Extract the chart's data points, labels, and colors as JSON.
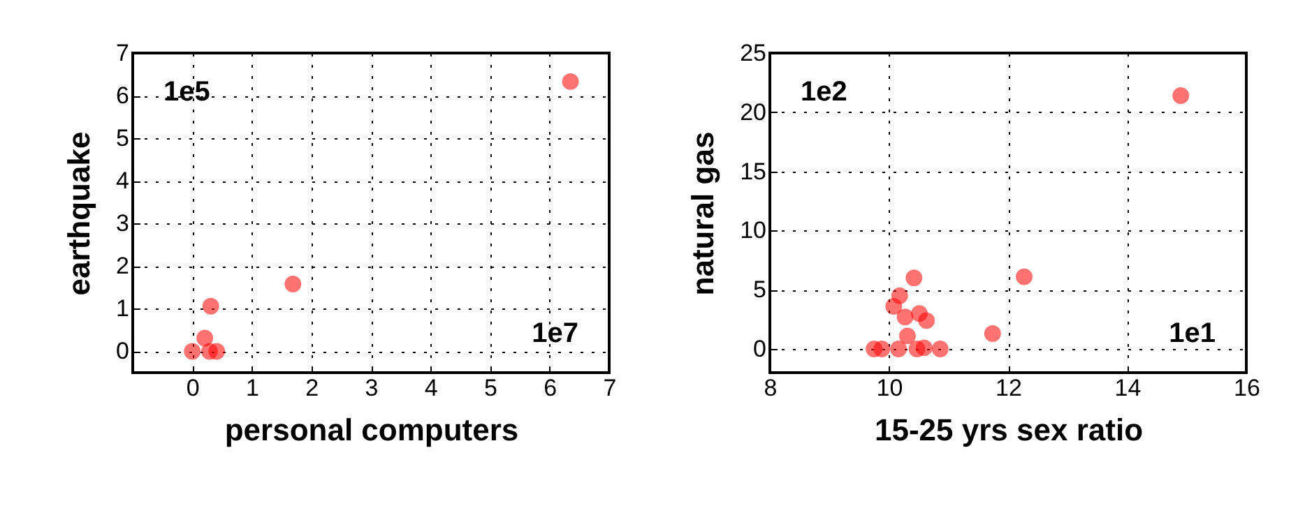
{
  "chart_data": [
    {
      "type": "scatter",
      "xlabel": "personal computers",
      "ylabel": "earthquake",
      "xlim": [
        -1,
        7
      ],
      "ylim": [
        -0.5,
        7
      ],
      "xticks": [
        0,
        1,
        2,
        3,
        4,
        5,
        6,
        7
      ],
      "yticks": [
        0,
        1,
        2,
        3,
        4,
        5,
        6,
        7
      ],
      "grid": true,
      "marker": "circle",
      "annotations": [
        "1e5",
        "1e7"
      ],
      "x": [
        6.35,
        1.69,
        0.31,
        0.21,
        0.41,
        0,
        0.29
      ],
      "series": [
        {
          "color": "#ff0000",
          "values": [
            6.33,
            1.58,
            1.06,
            0.31,
            0,
            0,
            0
          ]
        }
      ]
    },
    {
      "type": "scatter",
      "xlabel": "15-25 yrs sex ratio",
      "ylabel": "natural gas",
      "xlim": [
        8,
        16
      ],
      "ylim": [
        -2,
        25
      ],
      "xticks": [
        8,
        10,
        12,
        14,
        16
      ],
      "yticks": [
        0,
        5,
        10,
        15,
        20,
        25
      ],
      "grid": true,
      "marker": "circle",
      "annotations": [
        "1e2",
        "1e1"
      ],
      "x": [
        14.9,
        12.27,
        11.74,
        10.42,
        10.18,
        10.08,
        10.51,
        10.63,
        10.27,
        9.75,
        9.88,
        10.86,
        10.31,
        10.47,
        10.16,
        10.59
      ],
      "series": [
        {
          "color": "#ff0000",
          "values": [
            21.4,
            6.1,
            1.3,
            6,
            4.5,
            3.6,
            3,
            2.4,
            2.7,
            0,
            0,
            0,
            1.1,
            0,
            0,
            0.1
          ]
        }
      ]
    }
  ]
}
